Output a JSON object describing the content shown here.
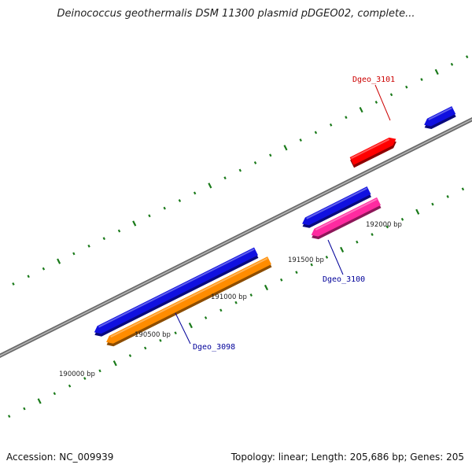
{
  "title": "Deinococcus geothermalis DSM 11300 plasmid pDGEO02, complete...",
  "footer": {
    "accession_label": "Accession:",
    "accession": "NC_009939",
    "topology_label": "Topology:",
    "topology": "linear",
    "length_label": "Length:",
    "length": "205,686 bp",
    "genes_label": "Genes:",
    "genes": "205"
  },
  "colors": {
    "backbone": "#8c8c8c",
    "tick": "#1a7a1a",
    "forward_gene": "#1010e0",
    "orange_gene": "#ff8c00",
    "pink_gene": "#ff2aa0",
    "red_gene": "#ff0000",
    "label_blue": "#000099",
    "label_red": "#cc0000"
  },
  "scale_labels": [
    {
      "bp": 190000,
      "text": "190000 bp"
    },
    {
      "bp": 190500,
      "text": "190500 bp"
    },
    {
      "bp": 191000,
      "text": "191000 bp"
    },
    {
      "bp": 191500,
      "text": "191500 bp"
    },
    {
      "bp": 192000,
      "text": "192000 bp"
    }
  ],
  "genes": [
    {
      "id": "g1",
      "label": "",
      "strand": "forward",
      "color": "#1010e0"
    },
    {
      "id": "g2",
      "label": "Dgeo_3098",
      "strand": "reverse",
      "color": "#ff8c00"
    },
    {
      "id": "g3",
      "label": "",
      "strand": "forward",
      "color": "#1010e0"
    },
    {
      "id": "g4",
      "label": "Dgeo_3100",
      "strand": "reverse",
      "color": "#ff2aa0"
    },
    {
      "id": "g5",
      "label": "Dgeo_3101",
      "strand": "reverse",
      "color": "#ff0000"
    },
    {
      "id": "g6",
      "label": "",
      "strand": "forward",
      "color": "#1010e0"
    }
  ]
}
